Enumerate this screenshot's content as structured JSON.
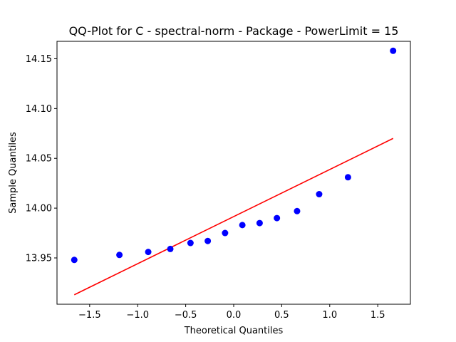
{
  "chart_data": {
    "type": "scatter",
    "title": "QQ-Plot for C - spectral-norm - Package - PowerLimit = 15",
    "xlabel": "Theoretical Quantiles",
    "ylabel": "Sample Quantiles",
    "xlim": [
      -1.84,
      1.84
    ],
    "ylim": [
      13.9035,
      14.1675
    ],
    "xticks": [
      -1.5,
      -1.0,
      -0.5,
      0.0,
      0.5,
      1.0,
      1.5
    ],
    "xtick_labels": [
      "−1.5",
      "−1.0",
      "−0.5",
      "0.0",
      "0.5",
      "1.0",
      "1.5"
    ],
    "yticks": [
      13.95,
      14.0,
      14.05,
      14.1,
      14.15
    ],
    "ytick_labels": [
      "13.95",
      "14.00",
      "14.05",
      "14.10",
      "14.15"
    ],
    "grid": false,
    "series": [
      {
        "kind": "points",
        "color": "#0000ff",
        "x": [
          -1.66,
          -1.19,
          -0.89,
          -0.66,
          -0.45,
          -0.27,
          -0.09,
          0.09,
          0.27,
          0.45,
          0.66,
          0.89,
          1.19,
          1.66
        ],
        "y": [
          13.948,
          13.953,
          13.956,
          13.959,
          13.965,
          13.967,
          13.975,
          13.983,
          13.985,
          13.99,
          13.997,
          14.014,
          14.031,
          14.158
        ]
      },
      {
        "kind": "reference-line",
        "color": "#ff0000",
        "x": [
          -1.66,
          1.66
        ],
        "y": [
          13.913,
          14.07
        ]
      }
    ]
  }
}
